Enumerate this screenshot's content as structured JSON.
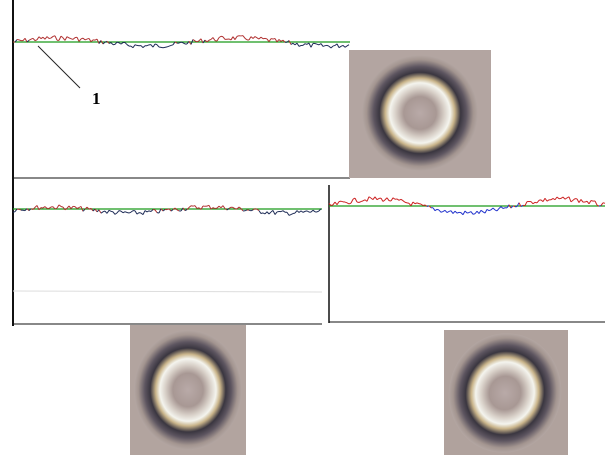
{
  "label": "1"
}
